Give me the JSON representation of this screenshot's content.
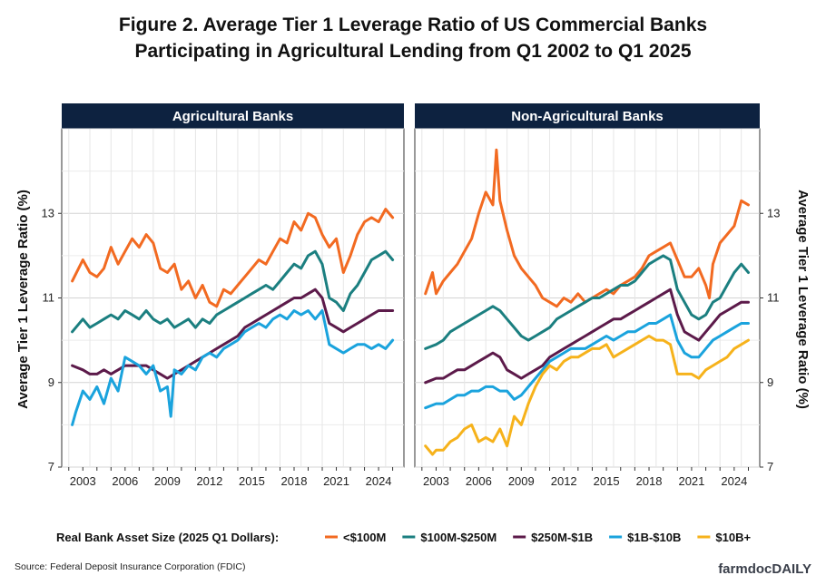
{
  "title": "Figure 2. Average Tier 1 Leverage Ratio of US Commercial Banks",
  "subtitle": "Participating in Agricultural Lending from Q1 2002 to Q1 2025",
  "source": "Source: Federal Deposit Insurance Corporation (FDIC)",
  "brand": "farmdocDAILY",
  "legend_title": "Real Bank Asset Size (2025 Q1 Dollars):",
  "colors": {
    "lt100m": "#f26a21",
    "m100_250": "#1b7f80",
    "m250_1b": "#5c1a4a",
    "b1_10": "#1aa3dd",
    "b10plus": "#f6b21b",
    "strip": "#0d2240"
  },
  "chart_data": [
    {
      "type": "line",
      "panel_title": "Agricultural Banks",
      "ylabel": "Average Tier 1 Leverage Ratio (%)",
      "xlabel": "",
      "ylim": [
        7,
        15
      ],
      "xlim": [
        2001.5,
        2025.8
      ],
      "y_ticks": [
        7,
        9,
        11,
        13
      ],
      "x_ticks": [
        "2003",
        "2006",
        "2009",
        "2012",
        "2015",
        "2018",
        "2021",
        "2024"
      ],
      "grid": true,
      "series": [
        {
          "name": "<$100M",
          "color_key": "lt100m",
          "x": [
            2002.25,
            2003,
            2003.5,
            2004,
            2004.5,
            2005,
            2005.5,
            2006,
            2006.5,
            2007,
            2007.5,
            2008,
            2008.5,
            2009,
            2009.5,
            2010,
            2010.5,
            2011,
            2011.5,
            2012,
            2012.5,
            2013,
            2013.5,
            2014,
            2014.5,
            2015,
            2015.5,
            2016,
            2016.5,
            2017,
            2017.5,
            2018,
            2018.5,
            2019,
            2019.5,
            2020,
            2020.5,
            2021,
            2021.5,
            2022,
            2022.5,
            2023,
            2023.5,
            2024,
            2024.5,
            2025
          ],
          "y": [
            11.4,
            11.9,
            11.6,
            11.5,
            11.7,
            12.2,
            11.8,
            12.1,
            12.4,
            12.2,
            12.5,
            12.3,
            11.7,
            11.6,
            11.8,
            11.2,
            11.4,
            11.0,
            11.3,
            10.9,
            10.8,
            11.2,
            11.1,
            11.3,
            11.5,
            11.7,
            11.9,
            11.8,
            12.1,
            12.4,
            12.3,
            12.8,
            12.6,
            13.0,
            12.9,
            12.5,
            12.2,
            12.4,
            11.6,
            12.0,
            12.5,
            12.8,
            12.9,
            12.8,
            13.1,
            12.9
          ]
        },
        {
          "name": "$100M-$250M",
          "color_key": "m100_250",
          "x": [
            2002.25,
            2003,
            2003.5,
            2004,
            2004.5,
            2005,
            2005.5,
            2006,
            2006.5,
            2007,
            2007.5,
            2008,
            2008.5,
            2009,
            2009.5,
            2010,
            2010.5,
            2011,
            2011.5,
            2012,
            2012.5,
            2013,
            2013.5,
            2014,
            2014.5,
            2015,
            2015.5,
            2016,
            2016.5,
            2017,
            2017.5,
            2018,
            2018.5,
            2019,
            2019.5,
            2020,
            2020.5,
            2021,
            2021.5,
            2022,
            2022.5,
            2023,
            2023.5,
            2024,
            2024.5,
            2025
          ],
          "y": [
            10.2,
            10.5,
            10.3,
            10.4,
            10.5,
            10.6,
            10.5,
            10.7,
            10.6,
            10.5,
            10.7,
            10.5,
            10.4,
            10.5,
            10.3,
            10.4,
            10.5,
            10.3,
            10.5,
            10.4,
            10.6,
            10.7,
            10.8,
            10.9,
            11.0,
            11.1,
            11.2,
            11.3,
            11.2,
            11.4,
            11.6,
            11.8,
            11.7,
            12.0,
            12.1,
            11.8,
            11.0,
            10.9,
            10.7,
            11.1,
            11.3,
            11.6,
            11.9,
            12.0,
            12.1,
            11.9
          ]
        },
        {
          "name": "$250M-$1B",
          "color_key": "m250_1b",
          "x": [
            2002.25,
            2003,
            2003.5,
            2004,
            2004.5,
            2005,
            2005.5,
            2006,
            2006.5,
            2007,
            2007.5,
            2008,
            2008.5,
            2009,
            2009.5,
            2010,
            2010.5,
            2011,
            2011.5,
            2012,
            2012.5,
            2013,
            2013.5,
            2014,
            2014.5,
            2015,
            2015.5,
            2016,
            2016.5,
            2017,
            2017.5,
            2018,
            2018.5,
            2019,
            2019.5,
            2020,
            2020.5,
            2021,
            2021.5,
            2022,
            2022.5,
            2023,
            2023.5,
            2024,
            2024.5,
            2025
          ],
          "y": [
            9.4,
            9.3,
            9.2,
            9.2,
            9.3,
            9.2,
            9.3,
            9.4,
            9.4,
            9.4,
            9.4,
            9.3,
            9.2,
            9.1,
            9.2,
            9.3,
            9.4,
            9.5,
            9.6,
            9.7,
            9.8,
            9.9,
            10.0,
            10.1,
            10.3,
            10.4,
            10.5,
            10.6,
            10.7,
            10.8,
            10.9,
            11.0,
            11.0,
            11.1,
            11.2,
            11.0,
            10.4,
            10.3,
            10.2,
            10.3,
            10.4,
            10.5,
            10.6,
            10.7,
            10.7,
            10.7
          ]
        },
        {
          "name": "$1B-$10B",
          "color_key": "b1_10",
          "x": [
            2002.25,
            2002.5,
            2003,
            2003.5,
            2004,
            2004.5,
            2005,
            2005.5,
            2006,
            2006.5,
            2007,
            2007.5,
            2008,
            2008.5,
            2009,
            2009.25,
            2009.5,
            2010,
            2010.5,
            2011,
            2011.5,
            2012,
            2012.5,
            2013,
            2013.5,
            2014,
            2014.5,
            2015,
            2015.5,
            2016,
            2016.5,
            2017,
            2017.5,
            2018,
            2018.5,
            2019,
            2019.5,
            2020,
            2020.5,
            2021,
            2021.5,
            2022,
            2022.5,
            2023,
            2023.5,
            2024,
            2024.5,
            2025
          ],
          "y": [
            8.0,
            8.3,
            8.8,
            8.6,
            8.9,
            8.5,
            9.1,
            8.8,
            9.6,
            9.5,
            9.4,
            9.2,
            9.4,
            8.8,
            8.9,
            8.2,
            9.3,
            9.2,
            9.4,
            9.3,
            9.6,
            9.7,
            9.6,
            9.8,
            9.9,
            10.0,
            10.2,
            10.3,
            10.4,
            10.3,
            10.5,
            10.6,
            10.5,
            10.7,
            10.6,
            10.7,
            10.5,
            10.7,
            9.9,
            9.8,
            9.7,
            9.8,
            9.9,
            9.9,
            9.8,
            9.9,
            9.8,
            10.0
          ]
        }
      ]
    },
    {
      "type": "line",
      "panel_title": "Non-Agricultural Banks",
      "ylabel": "Average Tier 1 Leverage Ratio (%)",
      "xlabel": "",
      "ylim": [
        7,
        15
      ],
      "xlim": [
        2001.5,
        2025.8
      ],
      "y_ticks": [
        7,
        9,
        11,
        13
      ],
      "x_ticks": [
        "2003",
        "2006",
        "2009",
        "2012",
        "2015",
        "2018",
        "2021",
        "2024"
      ],
      "grid": true,
      "series": [
        {
          "name": "<$100M",
          "color_key": "lt100m",
          "x": [
            2002.25,
            2002.75,
            2003,
            2003.5,
            2004,
            2004.5,
            2005,
            2005.5,
            2006,
            2006.5,
            2007,
            2007.25,
            2007.5,
            2008,
            2008.5,
            2009,
            2009.5,
            2010,
            2010.5,
            2011,
            2011.5,
            2012,
            2012.5,
            2013,
            2013.5,
            2014,
            2014.5,
            2015,
            2015.5,
            2016,
            2016.5,
            2017,
            2017.5,
            2018,
            2018.5,
            2019,
            2019.5,
            2020,
            2020.5,
            2021,
            2021.5,
            2022,
            2022.25,
            2022.5,
            2023,
            2023.5,
            2024,
            2024.5,
            2025
          ],
          "y": [
            11.1,
            11.6,
            11.1,
            11.4,
            11.6,
            11.8,
            12.1,
            12.4,
            13.0,
            13.5,
            13.2,
            14.5,
            13.3,
            12.6,
            12.0,
            11.7,
            11.5,
            11.3,
            11.0,
            10.9,
            10.8,
            11.0,
            10.9,
            11.1,
            10.9,
            11.0,
            11.1,
            11.2,
            11.1,
            11.3,
            11.4,
            11.5,
            11.7,
            12.0,
            12.1,
            12.2,
            12.3,
            11.9,
            11.5,
            11.5,
            11.7,
            11.3,
            11.0,
            11.8,
            12.3,
            12.5,
            12.7,
            13.3,
            13.2
          ]
        },
        {
          "name": "$100M-$250M",
          "color_key": "m100_250",
          "x": [
            2002.25,
            2003,
            2003.5,
            2004,
            2004.5,
            2005,
            2005.5,
            2006,
            2006.5,
            2007,
            2007.5,
            2008,
            2008.5,
            2009,
            2009.5,
            2010,
            2010.5,
            2011,
            2011.5,
            2012,
            2012.5,
            2013,
            2013.5,
            2014,
            2014.5,
            2015,
            2015.5,
            2016,
            2016.5,
            2017,
            2017.5,
            2018,
            2018.5,
            2019,
            2019.5,
            2020,
            2020.5,
            2021,
            2021.5,
            2022,
            2022.5,
            2023,
            2023.5,
            2024,
            2024.5,
            2025
          ],
          "y": [
            9.8,
            9.9,
            10.0,
            10.2,
            10.3,
            10.4,
            10.5,
            10.6,
            10.7,
            10.8,
            10.7,
            10.5,
            10.3,
            10.1,
            10.0,
            10.1,
            10.2,
            10.3,
            10.5,
            10.6,
            10.7,
            10.8,
            10.9,
            11.0,
            11.0,
            11.1,
            11.2,
            11.3,
            11.3,
            11.4,
            11.6,
            11.8,
            11.9,
            12.0,
            11.9,
            11.2,
            10.9,
            10.6,
            10.5,
            10.6,
            10.9,
            11.0,
            11.3,
            11.6,
            11.8,
            11.6
          ]
        },
        {
          "name": "$250M-$1B",
          "color_key": "m250_1b",
          "x": [
            2002.25,
            2003,
            2003.5,
            2004,
            2004.5,
            2005,
            2005.5,
            2006,
            2006.5,
            2007,
            2007.5,
            2008,
            2008.5,
            2009,
            2009.5,
            2010,
            2010.5,
            2011,
            2011.5,
            2012,
            2012.5,
            2013,
            2013.5,
            2014,
            2014.5,
            2015,
            2015.5,
            2016,
            2016.5,
            2017,
            2017.5,
            2018,
            2018.5,
            2019,
            2019.5,
            2020,
            2020.5,
            2021,
            2021.5,
            2022,
            2022.5,
            2023,
            2023.5,
            2024,
            2024.5,
            2025
          ],
          "y": [
            9.0,
            9.1,
            9.1,
            9.2,
            9.3,
            9.3,
            9.4,
            9.5,
            9.6,
            9.7,
            9.6,
            9.3,
            9.2,
            9.1,
            9.2,
            9.3,
            9.4,
            9.6,
            9.7,
            9.8,
            9.9,
            10.0,
            10.1,
            10.2,
            10.3,
            10.4,
            10.5,
            10.5,
            10.6,
            10.7,
            10.8,
            10.9,
            11.0,
            11.1,
            11.2,
            10.6,
            10.2,
            10.1,
            10.0,
            10.2,
            10.4,
            10.6,
            10.7,
            10.8,
            10.9,
            10.9
          ]
        },
        {
          "name": "$1B-$10B",
          "color_key": "b1_10",
          "x": [
            2002.25,
            2003,
            2003.5,
            2004,
            2004.5,
            2005,
            2005.5,
            2006,
            2006.5,
            2007,
            2007.5,
            2008,
            2008.5,
            2009,
            2009.5,
            2010,
            2010.5,
            2011,
            2011.5,
            2012,
            2012.5,
            2013,
            2013.5,
            2014,
            2014.5,
            2015,
            2015.5,
            2016,
            2016.5,
            2017,
            2017.5,
            2018,
            2018.5,
            2019,
            2019.5,
            2020,
            2020.5,
            2021,
            2021.5,
            2022,
            2022.5,
            2023,
            2023.5,
            2024,
            2024.5,
            2025
          ],
          "y": [
            8.4,
            8.5,
            8.5,
            8.6,
            8.7,
            8.7,
            8.8,
            8.8,
            8.9,
            8.9,
            8.8,
            8.8,
            8.6,
            8.7,
            8.9,
            9.1,
            9.3,
            9.5,
            9.6,
            9.7,
            9.8,
            9.8,
            9.8,
            9.9,
            10.0,
            10.1,
            10.0,
            10.1,
            10.2,
            10.2,
            10.3,
            10.4,
            10.4,
            10.5,
            10.6,
            10.0,
            9.7,
            9.6,
            9.6,
            9.8,
            10.0,
            10.1,
            10.2,
            10.3,
            10.4,
            10.4
          ]
        },
        {
          "name": "$10B+",
          "color_key": "b10plus",
          "x": [
            2002.25,
            2002.75,
            2003,
            2003.5,
            2004,
            2004.5,
            2005,
            2005.5,
            2006,
            2006.5,
            2007,
            2007.5,
            2008,
            2008.5,
            2009,
            2009.5,
            2010,
            2010.5,
            2011,
            2011.5,
            2012,
            2012.5,
            2013,
            2013.5,
            2014,
            2014.5,
            2015,
            2015.5,
            2016,
            2016.5,
            2017,
            2017.5,
            2018,
            2018.5,
            2019,
            2019.5,
            2020,
            2020.5,
            2021,
            2021.5,
            2022,
            2022.5,
            2023,
            2023.5,
            2024,
            2024.5,
            2025
          ],
          "y": [
            7.5,
            7.3,
            7.4,
            7.4,
            7.6,
            7.7,
            7.9,
            8.0,
            7.6,
            7.7,
            7.6,
            7.9,
            7.5,
            8.2,
            8.0,
            8.5,
            8.9,
            9.2,
            9.4,
            9.3,
            9.5,
            9.6,
            9.6,
            9.7,
            9.8,
            9.8,
            9.9,
            9.6,
            9.7,
            9.8,
            9.9,
            10.0,
            10.1,
            10.0,
            10.0,
            9.9,
            9.2,
            9.2,
            9.2,
            9.1,
            9.3,
            9.4,
            9.5,
            9.6,
            9.8,
            9.9,
            10.0
          ]
        }
      ]
    }
  ]
}
